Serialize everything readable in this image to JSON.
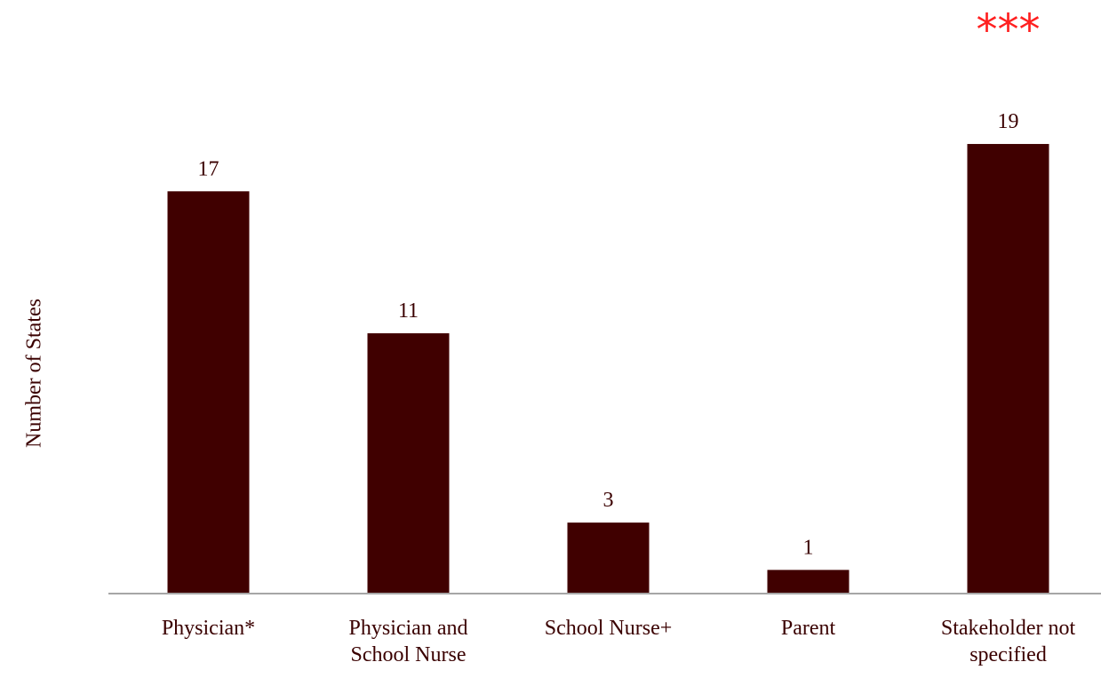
{
  "chart_data": {
    "type": "bar",
    "y_label": "Number of States",
    "annotation": "***",
    "annotation_color": "#ff2020",
    "categories": [
      "Physician*",
      "Physician and School Nurse",
      "School Nurse+",
      "Parent",
      "Stakeholder not specified"
    ],
    "values": [
      17,
      11,
      3,
      1,
      19
    ],
    "color": "#400000",
    "ylim": [
      0,
      20
    ],
    "grid": false
  }
}
